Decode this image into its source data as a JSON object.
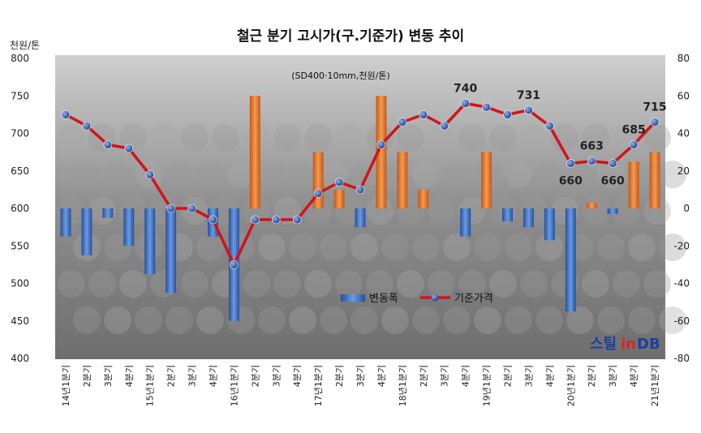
{
  "chart_data": {
    "type": "bar+line",
    "title": "철근 분기 고시가(구.기준가) 변동 추이",
    "subtitle": "(SD400·10mm,천원/톤)",
    "ylabel_left": "천원/톤",
    "ylim_left": [
      400,
      800
    ],
    "yticks_left": [
      400,
      450,
      500,
      550,
      600,
      650,
      700,
      750,
      800
    ],
    "ylim_right": [
      -80,
      80
    ],
    "yticks_right": [
      -80,
      -60,
      -40,
      -20,
      0,
      20,
      40,
      60,
      80
    ],
    "categories": [
      "14년1분기",
      "2분기",
      "3분기",
      "4분기",
      "15년1분기",
      "2분기",
      "3분기",
      "4분기",
      "16년1분기",
      "2분기",
      "3분기",
      "4분기",
      "17년1분기",
      "2분기",
      "3분기",
      "4분기",
      "18년1분기",
      "2분기",
      "3분기",
      "4분기",
      "19년1분기",
      "2분기",
      "3분기",
      "4분기",
      "20년1분기",
      "2분기",
      "3분기",
      "4분기",
      "21년1분기"
    ],
    "series": [
      {
        "name": "변동폭",
        "type": "bar",
        "axis": "right",
        "color_pos": "#e07a2a",
        "color_neg": "#3a6cc2",
        "values": [
          -15,
          -25,
          -5,
          -20,
          -35,
          -45,
          0,
          -15,
          -60,
          60,
          0,
          0,
          30,
          10,
          -10,
          60,
          30,
          10,
          0,
          -15,
          30,
          -7,
          -10,
          -17,
          -55,
          3,
          -3,
          25,
          30
        ]
      },
      {
        "name": "기준가격",
        "type": "line",
        "axis": "left",
        "color": "#d0141a",
        "values": [
          725,
          710,
          685,
          680,
          645,
          600,
          600,
          585,
          525,
          585,
          585,
          585,
          620,
          635,
          625,
          685,
          715,
          725,
          710,
          740,
          735,
          725,
          731,
          710,
          660,
          663,
          660,
          685,
          715
        ]
      }
    ],
    "data_labels": [
      {
        "index": 19,
        "text": "740"
      },
      {
        "index": 22,
        "text": "731"
      },
      {
        "index": 24,
        "text": "660"
      },
      {
        "index": 25,
        "text": "663"
      },
      {
        "index": 26,
        "text": "660"
      },
      {
        "index": 27,
        "text": "685"
      },
      {
        "index": 28,
        "text": "715"
      }
    ],
    "legend_position": "bottom-center",
    "grid": false
  },
  "watermark": {
    "part1": "스틸",
    "part2": "in",
    "part3": "DB"
  },
  "colors": {
    "bar_pos": "#e07a2a",
    "bar_neg": "#3a6cc2",
    "line": "#d0141a",
    "marker": "#2b4f9c"
  }
}
